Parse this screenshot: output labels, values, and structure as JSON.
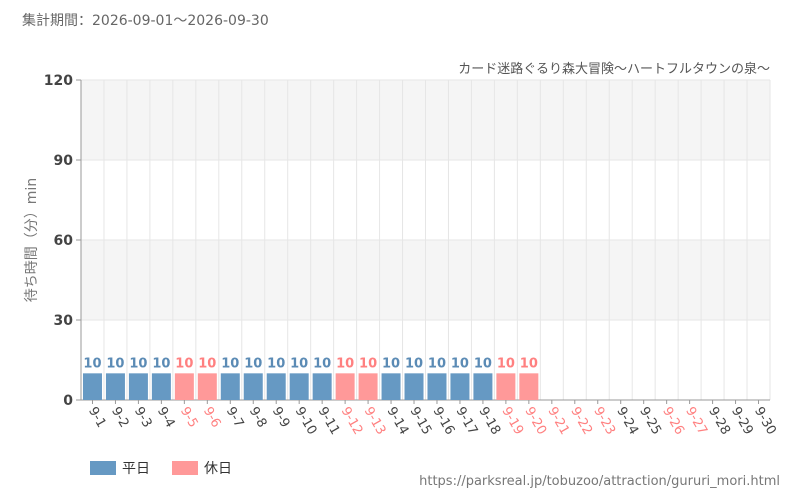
{
  "header": {
    "period_label": "集計期間：2026-09-01～2026-09-30"
  },
  "legend": {
    "items": [
      {
        "label": "平日",
        "color": "#6699c3"
      },
      {
        "label": "休日",
        "color": "#ff9999"
      }
    ]
  },
  "footer": {
    "url": "https://parksreal.jp/tobuzoo/attraction/gururi_mori.html"
  },
  "chart_data": {
    "type": "bar",
    "title": "",
    "subtitle": "カード迷路ぐるり森大冒険～ハートフルタウンの泉～",
    "ylabel": "待ち時間（分）min",
    "xlabel": "",
    "ylim": [
      0,
      120
    ],
    "yticks": [
      0,
      30,
      60,
      90,
      120
    ],
    "grid": true,
    "legend_position": "bottom-left",
    "colors": {
      "weekday": "#6699c3",
      "holiday": "#ff9999"
    },
    "categories": [
      "9-1",
      "9-2",
      "9-3",
      "9-4",
      "9-5",
      "9-6",
      "9-7",
      "9-8",
      "9-9",
      "9-10",
      "9-11",
      "9-12",
      "9-13",
      "9-14",
      "9-15",
      "9-16",
      "9-17",
      "9-18",
      "9-19",
      "9-20",
      "9-21",
      "9-22",
      "9-23",
      "9-24",
      "9-25",
      "9-26",
      "9-27",
      "9-28",
      "9-29",
      "9-30"
    ],
    "values": [
      10,
      10,
      10,
      10,
      10,
      10,
      10,
      10,
      10,
      10,
      10,
      10,
      10,
      10,
      10,
      10,
      10,
      10,
      10,
      10,
      null,
      null,
      null,
      null,
      null,
      null,
      null,
      null,
      null,
      null
    ],
    "day_types": [
      "weekday",
      "weekday",
      "weekday",
      "weekday",
      "holiday",
      "holiday",
      "weekday",
      "weekday",
      "weekday",
      "weekday",
      "weekday",
      "holiday",
      "holiday",
      "weekday",
      "weekday",
      "weekday",
      "weekday",
      "weekday",
      "holiday",
      "holiday",
      "holiday",
      "holiday",
      "holiday",
      "weekday",
      "weekday",
      "holiday",
      "holiday",
      "weekday",
      "weekday",
      "weekday"
    ]
  }
}
